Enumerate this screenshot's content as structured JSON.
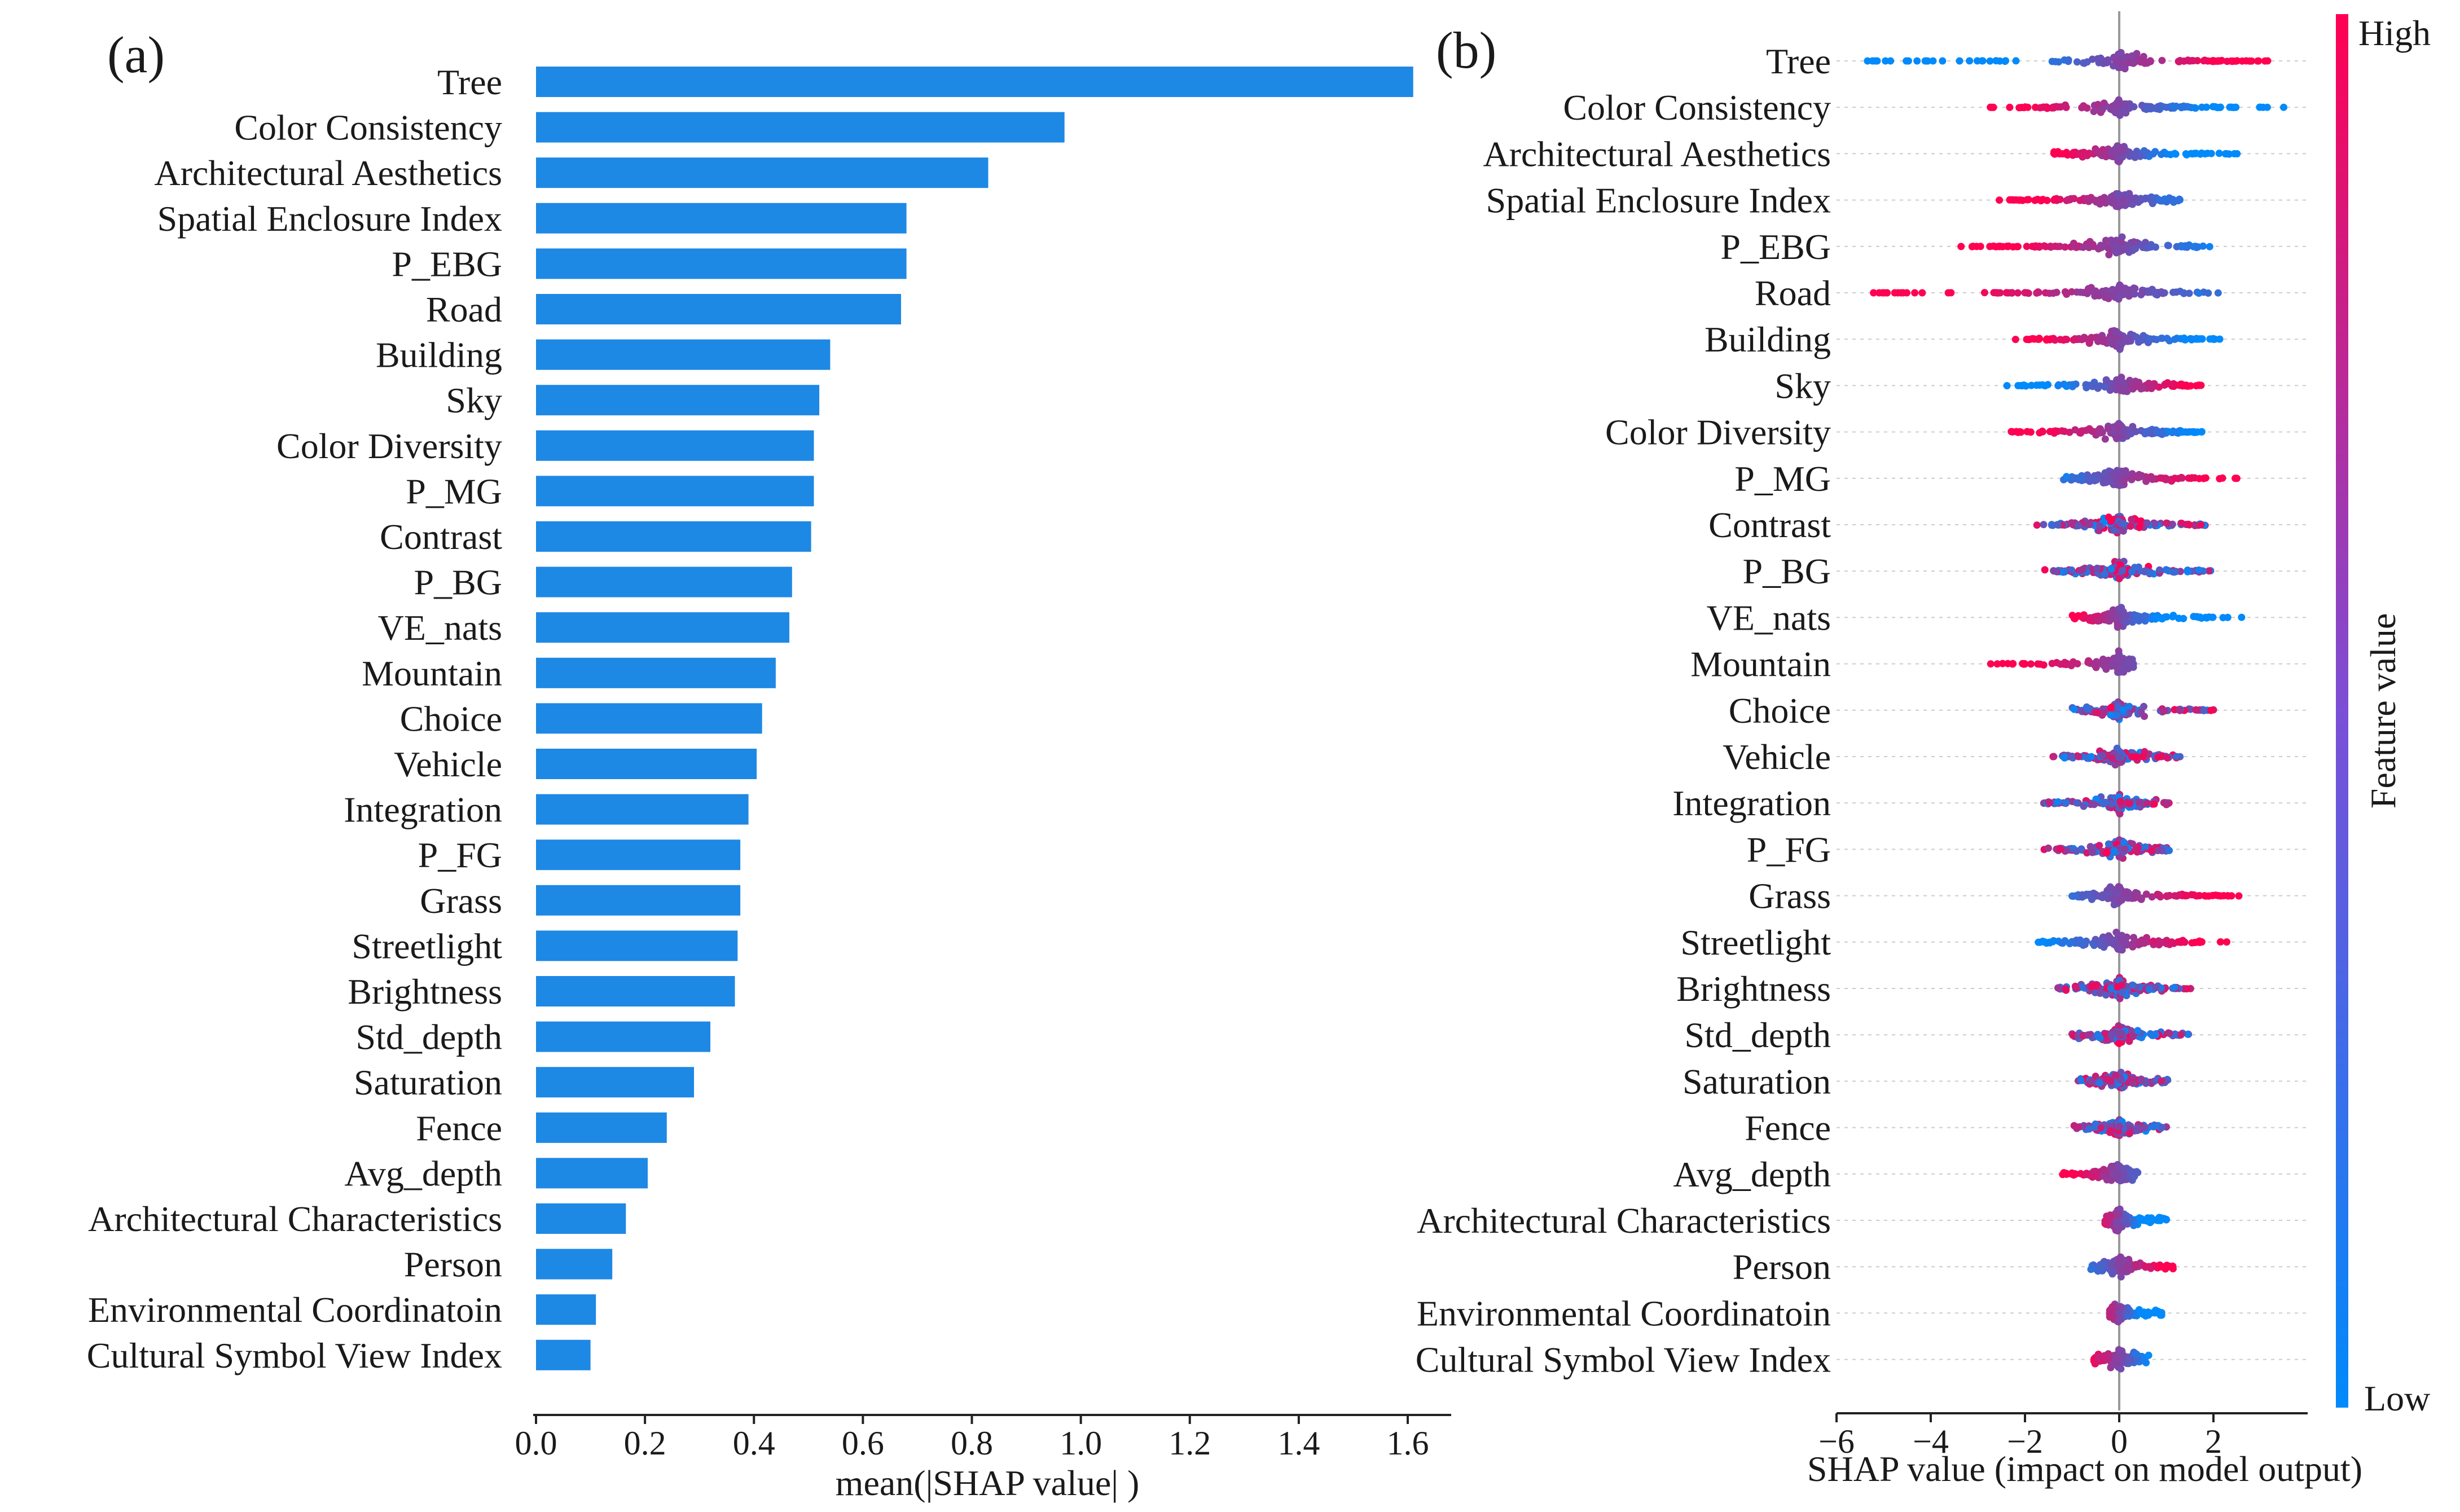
{
  "figure": {
    "panel_a_label": "(a)",
    "panel_b_label": "(b)"
  },
  "colors": {
    "bar": "#1e88e5",
    "low": "#008afb",
    "high": "#ff0052",
    "zero_line": "#999999",
    "axis": "#222222"
  },
  "chart_data": [
    {
      "type": "bar",
      "orientation": "horizontal",
      "panel": "(a)",
      "categories": [
        "Tree",
        "Color Consistency",
        "Architectural Aesthetics",
        "Spatial Enclosure Index",
        "P_EBG",
        "Road",
        "Building",
        "Sky",
        "Color Diversity",
        "P_MG",
        "Contrast",
        "P_BG",
        "VE_nats",
        "Mountain",
        "Choice",
        "Vehicle",
        "Integration",
        "P_FG",
        "Grass",
        "Streetlight",
        "Brightness",
        "Std_depth",
        "Saturation",
        "Fence",
        "Avg_depth",
        "Architectural Characteristics",
        "Person",
        "Environmental Coordinatoin",
        "Cultural Symbol View Index"
      ],
      "values": [
        1.61,
        0.97,
        0.83,
        0.68,
        0.68,
        0.67,
        0.54,
        0.52,
        0.51,
        0.51,
        0.505,
        0.47,
        0.465,
        0.44,
        0.415,
        0.405,
        0.39,
        0.375,
        0.375,
        0.37,
        0.365,
        0.32,
        0.29,
        0.24,
        0.205,
        0.165,
        0.14,
        0.11,
        0.1
      ],
      "xlabel": "mean(|SHAP value| )",
      "xlim": [
        0.0,
        1.6
      ],
      "xticks": [
        "0.0",
        "0.2",
        "0.4",
        "0.6",
        "0.8",
        "1.0",
        "1.2",
        "1.4",
        "1.6"
      ]
    },
    {
      "type": "scatter",
      "subtype": "shap_beeswarm",
      "panel": "(b)",
      "features": [
        "Tree",
        "Color Consistency",
        "Architectural Aesthetics",
        "Spatial Enclosure Index",
        "P_EBG",
        "Road",
        "Building",
        "Sky",
        "Color Diversity",
        "P_MG",
        "Contrast",
        "P_BG",
        "VE_nats",
        "Mountain",
        "Choice",
        "Vehicle",
        "Integration",
        "P_FG",
        "Grass",
        "Streetlight",
        "Brightness",
        "Std_depth",
        "Saturation",
        "Fence",
        "Avg_depth",
        "Architectural Characteristics",
        "Person",
        "Environmental Coordinatoin",
        "Cultural Symbol View Index"
      ],
      "shap_ranges": [
        [
          -5.8,
          3.4
        ],
        [
          -3.0,
          3.5
        ],
        [
          -1.5,
          2.5
        ],
        [
          -2.6,
          1.3
        ],
        [
          -3.4,
          2.1
        ],
        [
          -5.3,
          2.1
        ],
        [
          -2.2,
          2.2
        ],
        [
          -2.4,
          2.0
        ],
        [
          -2.3,
          1.8
        ],
        [
          -1.2,
          2.5
        ],
        [
          -1.8,
          1.9
        ],
        [
          -1.6,
          2.0
        ],
        [
          -1.0,
          2.7
        ],
        [
          -2.8,
          0.3
        ],
        [
          -1.0,
          2.0
        ],
        [
          -1.5,
          1.3
        ],
        [
          -1.6,
          1.1
        ],
        [
          -1.6,
          1.3
        ],
        [
          -1.0,
          2.6
        ],
        [
          -1.8,
          2.3
        ],
        [
          -1.3,
          1.6
        ],
        [
          -1.0,
          1.5
        ],
        [
          -0.9,
          1.1
        ],
        [
          -1.0,
          1.0
        ],
        [
          -1.2,
          0.4
        ],
        [
          -0.3,
          1.0
        ],
        [
          -0.6,
          1.2
        ],
        [
          -0.2,
          0.9
        ],
        [
          -0.6,
          0.7
        ]
      ],
      "high_value_side": [
        "positive",
        "negative",
        "negative",
        "negative",
        "negative",
        "negative",
        "negative",
        "positive",
        "negative",
        "positive",
        "mixed",
        "mixed",
        "negative",
        "negative",
        "mixed",
        "mixed",
        "mixed",
        "mixed",
        "positive",
        "positive",
        "mixed",
        "mixed",
        "mixed",
        "mixed",
        "negative",
        "negative",
        "positive",
        "negative",
        "negative"
      ],
      "xlabel": "SHAP value (impact on model output)",
      "xlim": [
        -6,
        4
      ],
      "xticks": [
        "−6",
        "−4",
        "−2",
        "0",
        "2"
      ],
      "colorbar": {
        "label": "Feature value",
        "high": "High",
        "low": "Low"
      }
    }
  ]
}
